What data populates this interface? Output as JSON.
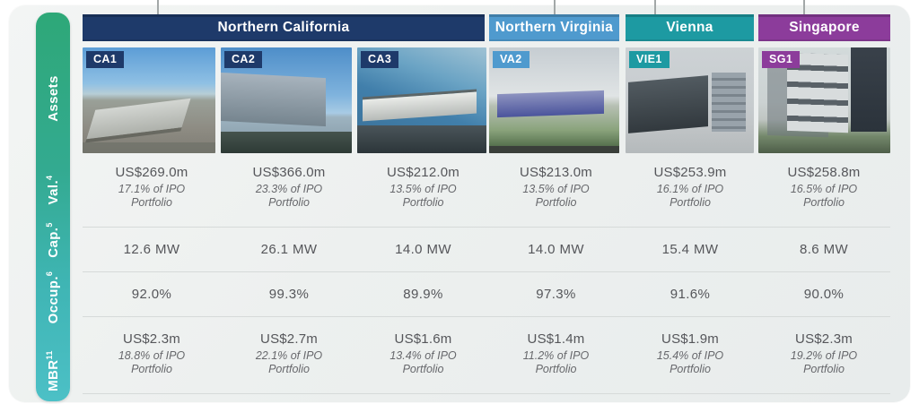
{
  "palette": {
    "navy": "#1e3a6a",
    "blue": "#4f9ace",
    "teal": "#1d9aa2",
    "purple": "#8c3c9b",
    "sidebar_gradient_top": "#2ea878",
    "sidebar_gradient_bottom": "#4cc0c6",
    "card_background": "#edf0ef"
  },
  "header": {
    "regions": [
      {
        "label": "Northern California",
        "color": "#1e3a6a",
        "columns": 3
      },
      {
        "label": "Northern Virginia",
        "color": "#4f9ace",
        "columns": 1
      },
      {
        "label": "Vienna",
        "color": "#1d9aa2",
        "columns": 1
      },
      {
        "label": "Singapore",
        "color": "#8c3c9b",
        "columns": 1
      }
    ]
  },
  "sidebar": {
    "labels": [
      {
        "text": "Assets",
        "sup": ""
      },
      {
        "text": "Val.",
        "sup": "4"
      },
      {
        "text": "Cap.",
        "sup": "5"
      },
      {
        "text": "Occup.",
        "sup": "6"
      },
      {
        "text": "MBR",
        "sup": "11"
      }
    ]
  },
  "assets": [
    {
      "code": "CA1",
      "region": "Northern California",
      "tag_color": "#1e3a6a",
      "valuation": "US$269.0m",
      "valuation_share": "17.1% of IPO Portfolio",
      "capacity": "12.6 MW",
      "occupancy": "92.0%",
      "mbr": "US$2.3m",
      "mbr_share": "18.8% of IPO Portfolio",
      "photo": "aerial view of industrial park warehouse"
    },
    {
      "code": "CA2",
      "region": "Northern California",
      "tag_color": "#1e3a6a",
      "valuation": "US$366.0m",
      "valuation_share": "23.3% of IPO Portfolio",
      "capacity": "26.1 MW",
      "occupancy": "99.3%",
      "mbr": "US$2.7m",
      "mbr_share": "22.1% of IPO Portfolio",
      "photo": "large grey data centre building under blue sky"
    },
    {
      "code": "CA3",
      "region": "Northern California",
      "tag_color": "#1e3a6a",
      "valuation": "US$212.0m",
      "valuation_share": "13.5% of IPO Portfolio",
      "capacity": "14.0 MW",
      "occupancy": "89.9%",
      "mbr": "US$1.6m",
      "mbr_share": "13.4% of IPO Portfolio",
      "photo": "low warehouse building at dusk"
    },
    {
      "code": "VA2",
      "region": "Northern Virginia",
      "tag_color": "#4f9ace",
      "valuation": "US$213.0m",
      "valuation_share": "13.5% of IPO Portfolio",
      "capacity": "14.0 MW",
      "occupancy": "97.3%",
      "mbr": "US$1.4m",
      "mbr_share": "11.2% of IPO Portfolio",
      "photo": "data centre amid trees under overcast sky"
    },
    {
      "code": "VIE1",
      "region": "Vienna",
      "tag_color": "#1d9aa2",
      "valuation": "US$253.9m",
      "valuation_share": "16.1% of IPO Portfolio",
      "capacity": "15.4 MW",
      "occupancy": "91.6%",
      "mbr": "US$1.9m",
      "mbr_share": "15.4% of IPO Portfolio",
      "photo": "modern dark office and data centre complex"
    },
    {
      "code": "SG1",
      "region": "Singapore",
      "tag_color": "#8c3c9b",
      "valuation": "US$258.8m",
      "valuation_share": "16.5% of IPO Portfolio",
      "capacity": "8.6 MW",
      "occupancy": "90.0%",
      "mbr": "US$2.3m",
      "mbr_share": "19.2% of IPO Portfolio",
      "photo": "high-rise data centre towers with greenery"
    }
  ]
}
